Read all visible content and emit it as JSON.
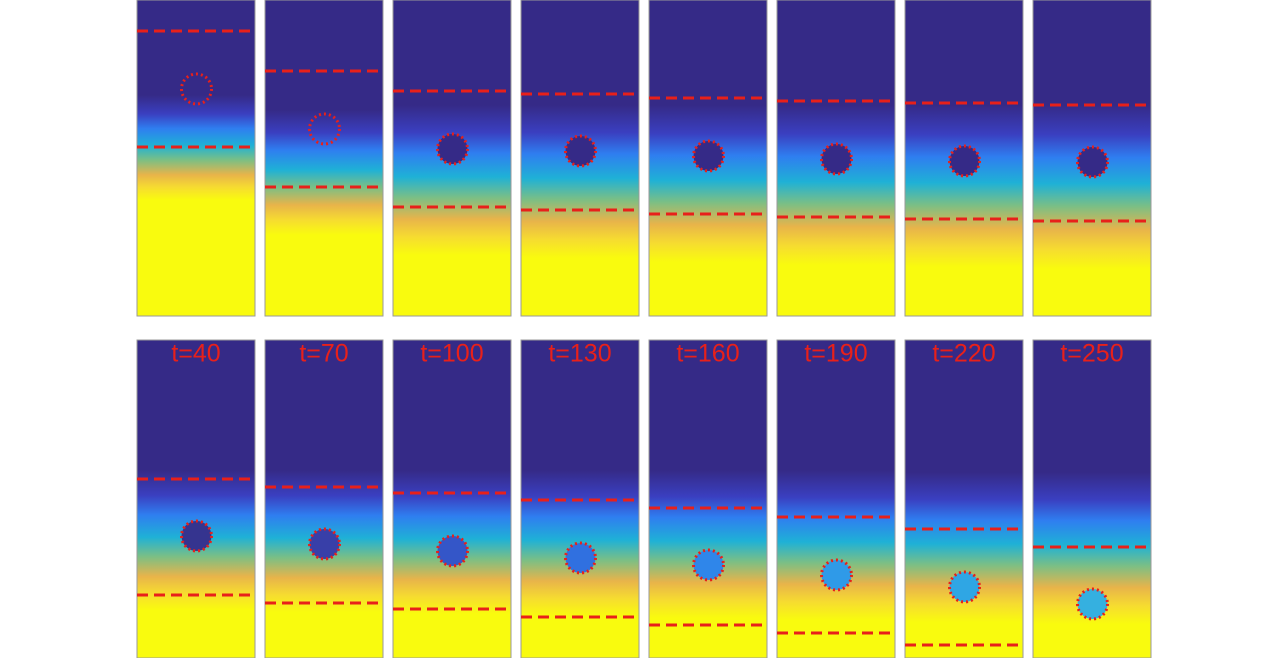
{
  "panel_labels": [
    "t=40",
    "t=70",
    "t=100",
    "t=130",
    "t=160",
    "t=190",
    "t=220",
    "t=250"
  ]
}
